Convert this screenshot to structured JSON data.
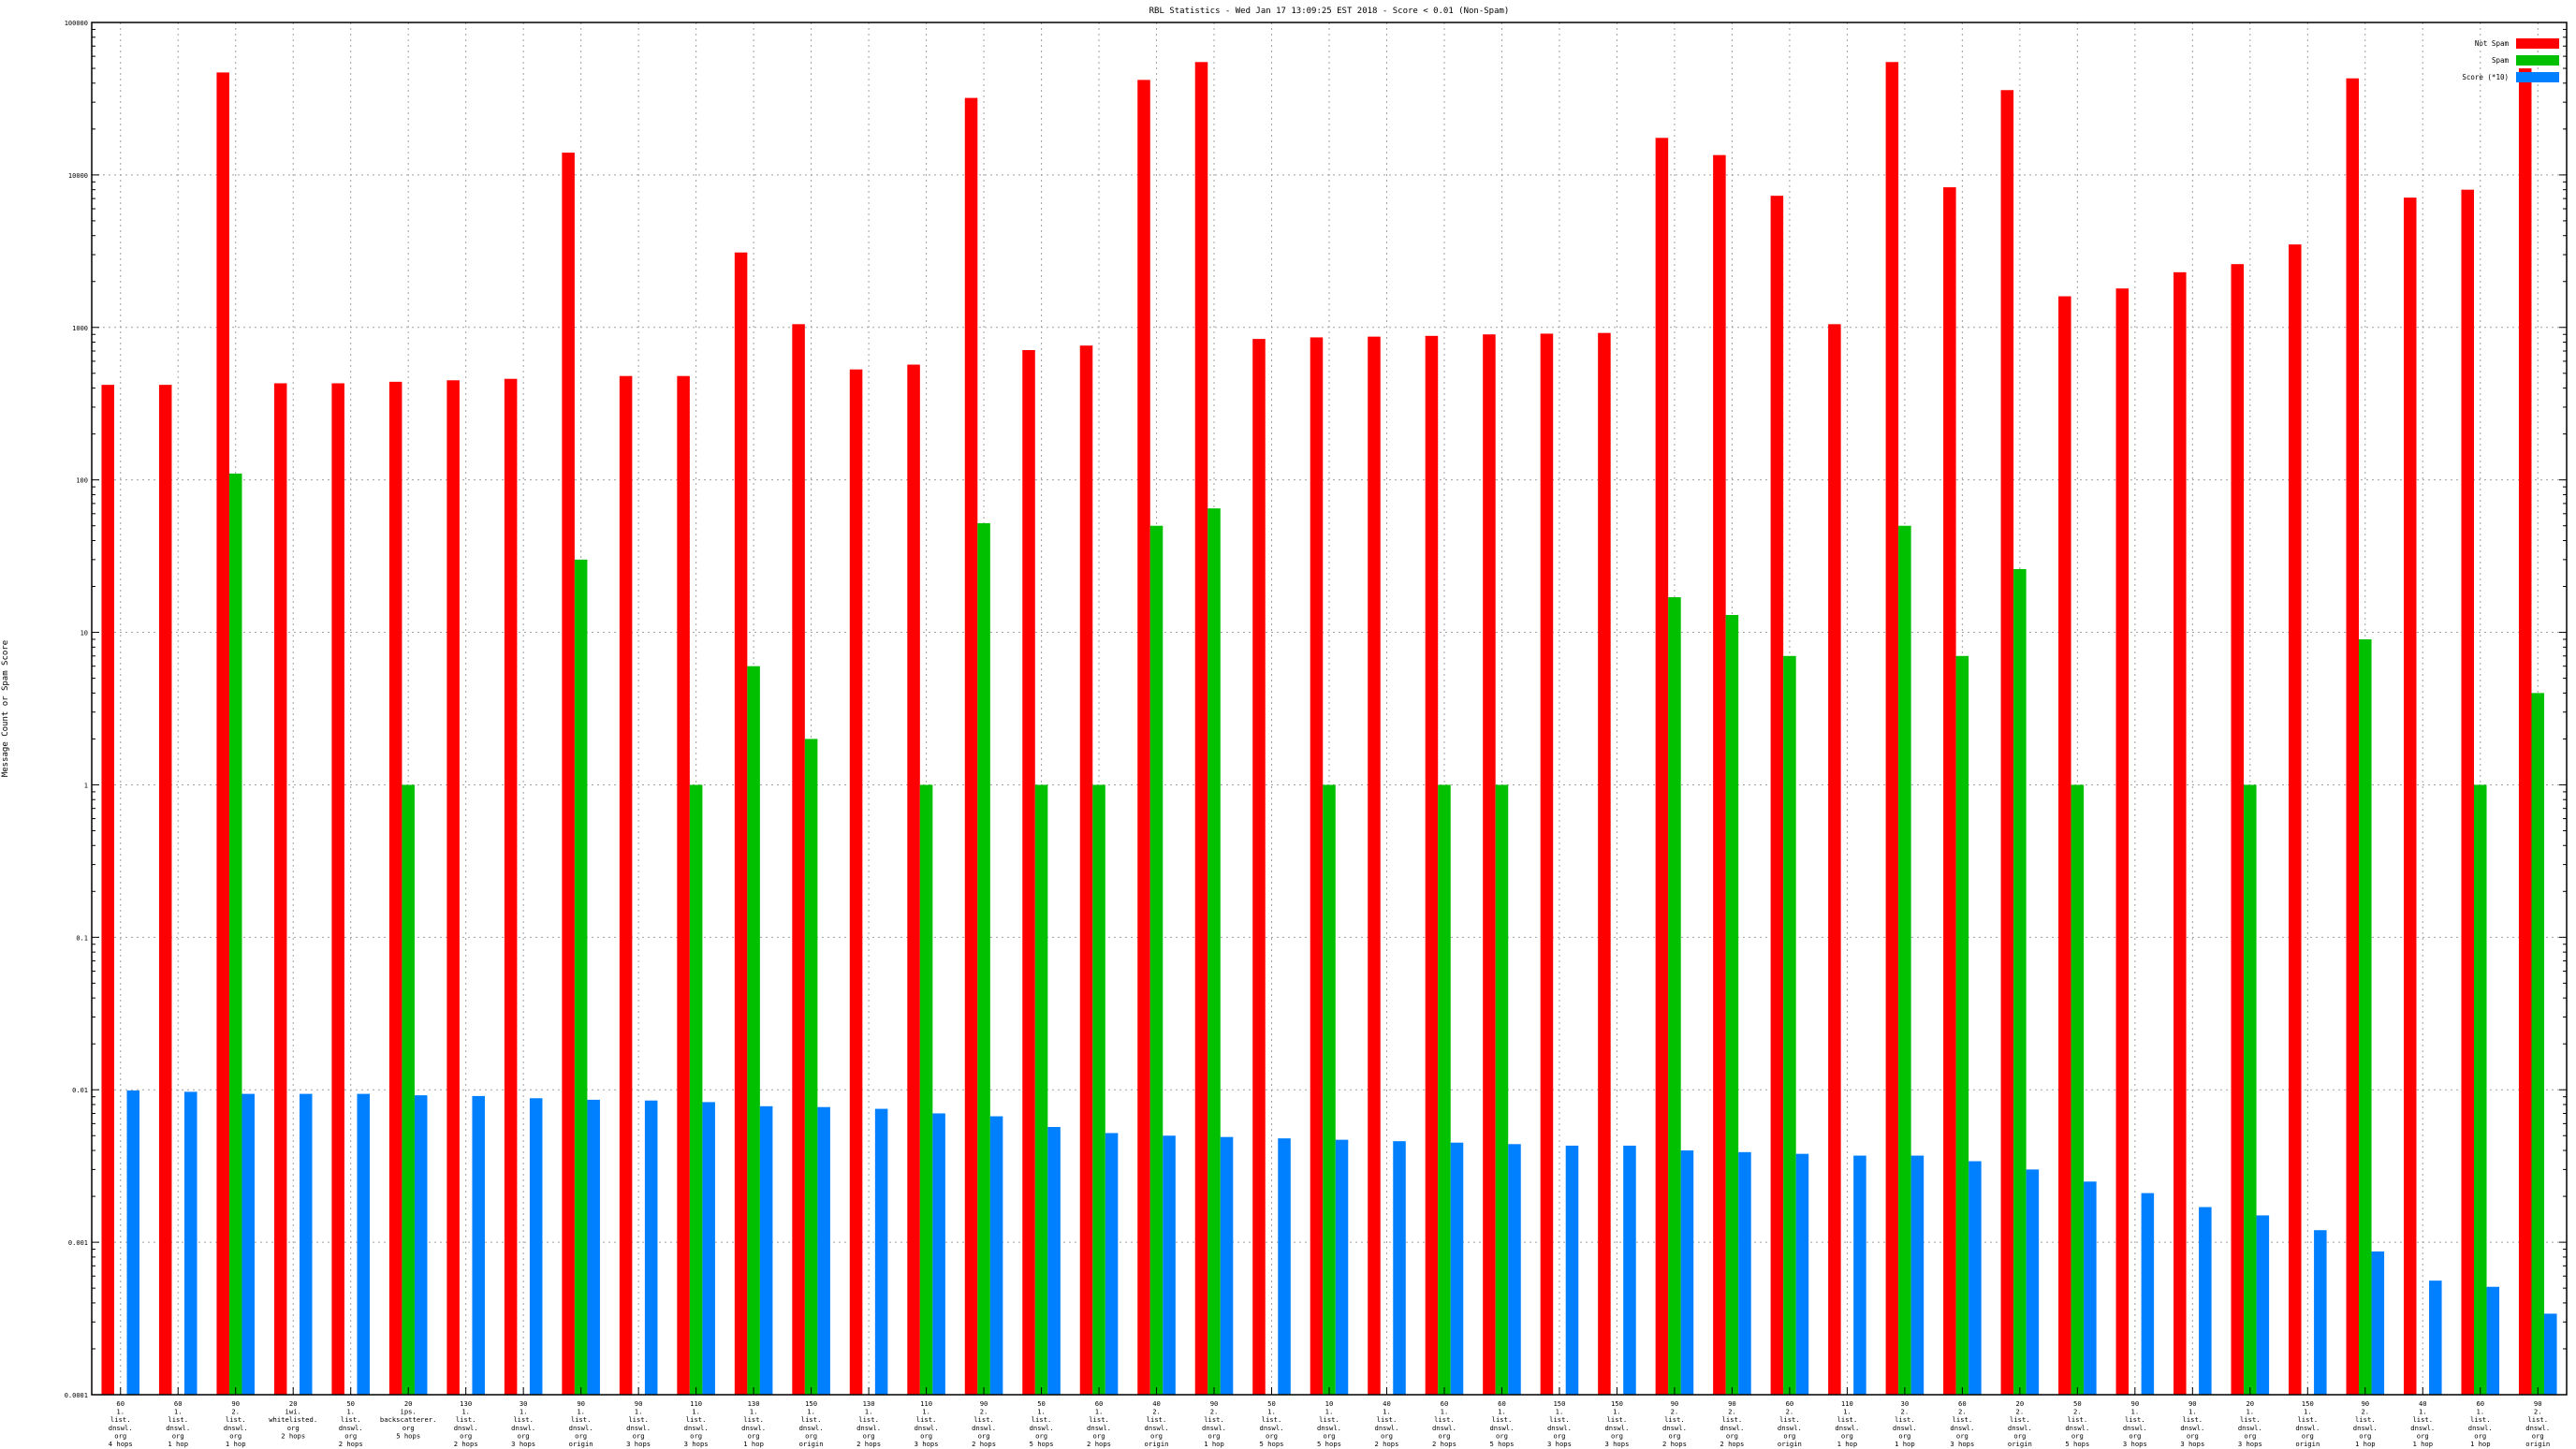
{
  "chart_data": {
    "type": "bar",
    "title": "RBL Statistics - Wed Jan 17 13:09:25 EST 2018 - Score < 0.01 (Non-Spam)",
    "ylabel": "Message Count or Spam Score",
    "yscale": "log",
    "ylim": [
      0.0001,
      100000
    ],
    "yticks": [
      "0.0001",
      "0.001",
      "0.01",
      "0.1",
      "1",
      "10",
      "100",
      "1000",
      "10000",
      "100000"
    ],
    "grid": true,
    "legend_position": "top-right",
    "colors": {
      "not_spam": "#ff0000",
      "spam": "#00c000",
      "score": "#0080ff"
    },
    "categories": [
      [
        "60",
        "1.",
        "list.",
        "dnswl.",
        "org",
        "4 hops"
      ],
      [
        "60",
        "1.",
        "list.",
        "dnswl.",
        "org",
        "1 hop"
      ],
      [
        "90",
        "2.",
        "list.",
        "dnswl.",
        "org",
        "1 hop"
      ],
      [
        "20",
        "iwi.",
        "whitelisted.",
        "org",
        "2 hops"
      ],
      [
        "50",
        "1.",
        "list.",
        "dnswl.",
        "org",
        "2 hops"
      ],
      [
        "20",
        "ips.",
        "backscatterer.",
        "org",
        "5 hops"
      ],
      [
        "130",
        "1.",
        "list.",
        "dnswl.",
        "org",
        "2 hops"
      ],
      [
        "30",
        "1.",
        "list.",
        "dnswl.",
        "org",
        "3 hops"
      ],
      [
        "90",
        "1.",
        "list.",
        "dnswl.",
        "org",
        "origin"
      ],
      [
        "90",
        "1.",
        "list.",
        "dnswl.",
        "org",
        "3 hops"
      ],
      [
        "110",
        "1.",
        "list.",
        "dnswl.",
        "org",
        "3 hops"
      ],
      [
        "130",
        "1.",
        "list.",
        "dnswl.",
        "org",
        "1 hop"
      ],
      [
        "150",
        "1.",
        "list.",
        "dnswl.",
        "org",
        "origin"
      ],
      [
        "130",
        "1.",
        "list.",
        "dnswl.",
        "org",
        "2 hops"
      ],
      [
        "110",
        "1.",
        "list.",
        "dnswl.",
        "org",
        "3 hops"
      ],
      [
        "90",
        "2.",
        "list.",
        "dnswl.",
        "org",
        "2 hops"
      ],
      [
        "50",
        "1.",
        "list.",
        "dnswl.",
        "org",
        "5 hops"
      ],
      [
        "60",
        "1.",
        "list.",
        "dnswl.",
        "org",
        "2 hops"
      ],
      [
        "40",
        "2.",
        "list.",
        "dnswl.",
        "org",
        "origin"
      ],
      [
        "90",
        "2.",
        "list.",
        "dnswl.",
        "org",
        "1 hop"
      ],
      [
        "50",
        "1.",
        "list.",
        "dnswl.",
        "org",
        "5 hops"
      ],
      [
        "10",
        "1.",
        "list.",
        "dnswl.",
        "org",
        "5 hops"
      ],
      [
        "40",
        "1.",
        "list.",
        "dnswl.",
        "org",
        "2 hops"
      ],
      [
        "60",
        "1.",
        "list.",
        "dnswl.",
        "org",
        "2 hops"
      ],
      [
        "60",
        "1.",
        "list.",
        "dnswl.",
        "org",
        "5 hops"
      ],
      [
        "150",
        "1.",
        "list.",
        "dnswl.",
        "org",
        "3 hops"
      ],
      [
        "150",
        "1.",
        "list.",
        "dnswl.",
        "org",
        "3 hops"
      ],
      [
        "90",
        "2.",
        "list.",
        "dnswl.",
        "org",
        "2 hops"
      ],
      [
        "90",
        "2.",
        "list.",
        "dnswl.",
        "org",
        "2 hops"
      ],
      [
        "60",
        "2.",
        "list.",
        "dnswl.",
        "org",
        "origin"
      ],
      [
        "110",
        "1.",
        "list.",
        "dnswl.",
        "org",
        "1 hop"
      ],
      [
        "30",
        "2.",
        "list.",
        "dnswl.",
        "org",
        "1 hop"
      ],
      [
        "60",
        "2.",
        "list.",
        "dnswl.",
        "org",
        "3 hops"
      ],
      [
        "20",
        "2.",
        "list.",
        "dnswl.",
        "org",
        "origin"
      ],
      [
        "50",
        "2.",
        "list.",
        "dnswl.",
        "org",
        "5 hops"
      ],
      [
        "90",
        "1.",
        "list.",
        "dnswl.",
        "org",
        "3 hops"
      ],
      [
        "90",
        "1.",
        "list.",
        "dnswl.",
        "org",
        "3 hops"
      ],
      [
        "20",
        "1.",
        "list.",
        "dnswl.",
        "org",
        "3 hops"
      ],
      [
        "150",
        "1.",
        "list.",
        "dnswl.",
        "org",
        "origin"
      ],
      [
        "90",
        "2.",
        "list.",
        "dnswl.",
        "org",
        "1 hop"
      ],
      [
        "40",
        "1.",
        "list.",
        "dnswl.",
        "org",
        "1 hop"
      ],
      [
        "60",
        "1.",
        "list.",
        "dnswl.",
        "org",
        "1 hop"
      ],
      [
        "90",
        "2.",
        "list.",
        "dnswl.",
        "org",
        "origin"
      ]
    ],
    "series": [
      {
        "name": "Not Spam",
        "values": [
          420,
          420,
          47000,
          430,
          430,
          440,
          450,
          460,
          14000,
          480,
          480,
          3100,
          1050,
          530,
          570,
          32000,
          710,
          760,
          42000,
          55000,
          840,
          860,
          870,
          880,
          900,
          910,
          920,
          17500,
          13500,
          7300,
          1050,
          55000,
          8300,
          36000,
          1600,
          1800,
          2300,
          2600,
          3500,
          43000,
          7100,
          8000,
          50000
        ]
      },
      {
        "name": "Spam",
        "values": [
          0,
          0,
          110,
          0,
          0,
          1,
          0,
          0,
          30,
          0,
          1,
          6,
          2,
          0,
          1,
          52,
          1,
          1,
          50,
          65,
          0,
          1,
          0,
          1,
          1,
          0,
          0,
          17,
          13,
          7,
          0,
          50,
          7,
          26,
          1,
          0,
          0,
          1,
          0,
          9,
          0,
          1,
          4
        ]
      },
      {
        "name": "Score (*10)",
        "values": [
          0.0099,
          0.0097,
          0.0094,
          0.0094,
          0.0094,
          0.0092,
          0.0091,
          0.0088,
          0.0086,
          0.0085,
          0.0083,
          0.0078,
          0.0077,
          0.0075,
          0.007,
          0.0067,
          0.0057,
          0.0052,
          0.005,
          0.0049,
          0.0048,
          0.0047,
          0.0046,
          0.0045,
          0.0044,
          0.0043,
          0.0043,
          0.004,
          0.0039,
          0.0038,
          0.0037,
          0.0037,
          0.0034,
          0.003,
          0.0025,
          0.0021,
          0.0017,
          0.0015,
          0.0012,
          0.00087,
          0.00056,
          0.00051,
          0.00034
        ]
      }
    ]
  }
}
